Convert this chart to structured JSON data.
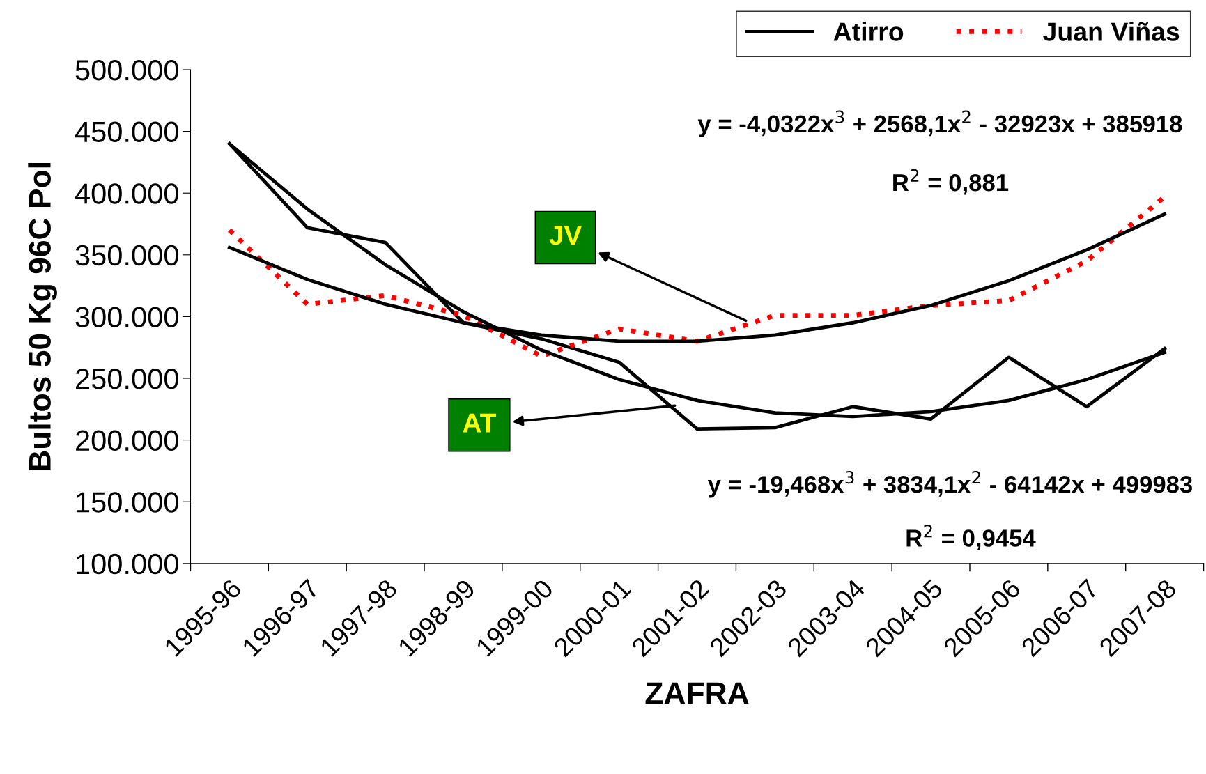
{
  "chart_data": {
    "type": "line",
    "xlabel": "ZAFRA",
    "ylabel": "Bultos 50 Kg 96C Pol",
    "categories": [
      "1995-96",
      "1996-97",
      "1997-98",
      "1998-99",
      "1999-00",
      "2000-01",
      "2001-02",
      "2002-03",
      "2003-04",
      "2004-05",
      "2005-06",
      "2006-07",
      "2007-08"
    ],
    "series": [
      {
        "name": "Atirro",
        "color": "#000000",
        "line_style": "solid",
        "values": [
          440000,
          372000,
          360000,
          295000,
          282000,
          263000,
          209000,
          210000,
          227000,
          217000,
          267000,
          227000,
          274000
        ]
      },
      {
        "name": "Juan Viñas",
        "color": "#ff0000",
        "line_style": "dotted",
        "values": [
          370000,
          310000,
          317000,
          301000,
          268000,
          290000,
          280000,
          301000,
          301000,
          309000,
          313000,
          345000,
          397000
        ]
      },
      {
        "color": "#000000",
        "line_style": "solid",
        "values": [
          440000,
          387000,
          342000,
          304000,
          273000,
          249000,
          232000,
          222000,
          219000,
          223000,
          232000,
          249000,
          271000
        ]
      },
      {
        "color": "#000000",
        "line_style": "solid",
        "values": [
          356000,
          330000,
          310000,
          295000,
          285000,
          280000,
          280000,
          285000,
          295000,
          309000,
          329000,
          354000,
          383000
        ]
      }
    ],
    "ylim": [
      100000,
      500000
    ],
    "yticks": [
      {
        "value": 100000,
        "label": "100.000"
      },
      {
        "value": 150000,
        "label": "150.000"
      },
      {
        "value": 200000,
        "label": "200.000"
      },
      {
        "value": 250000,
        "label": "250.000"
      },
      {
        "value": 300000,
        "label": "300.000"
      },
      {
        "value": 350000,
        "label": "350.000"
      },
      {
        "value": 400000,
        "label": "400.000"
      },
      {
        "value": 450000,
        "label": "450.000"
      },
      {
        "value": 500000,
        "label": "500.000"
      }
    ],
    "grid": false,
    "legend": "top right",
    "marker": "none",
    "annotations": [
      "y = -4,0322x$^{3}$ + 2568,1x$^{2}$ - 32923x + 385918",
      "R$^{2}$ = 0,881",
      "y = -19,468x$^{3}$ + 3834,1x$^{2}$ - 64142x + 499983",
      "R$^{2}$ = 0,9454",
      "JV",
      "AT"
    ]
  }
}
